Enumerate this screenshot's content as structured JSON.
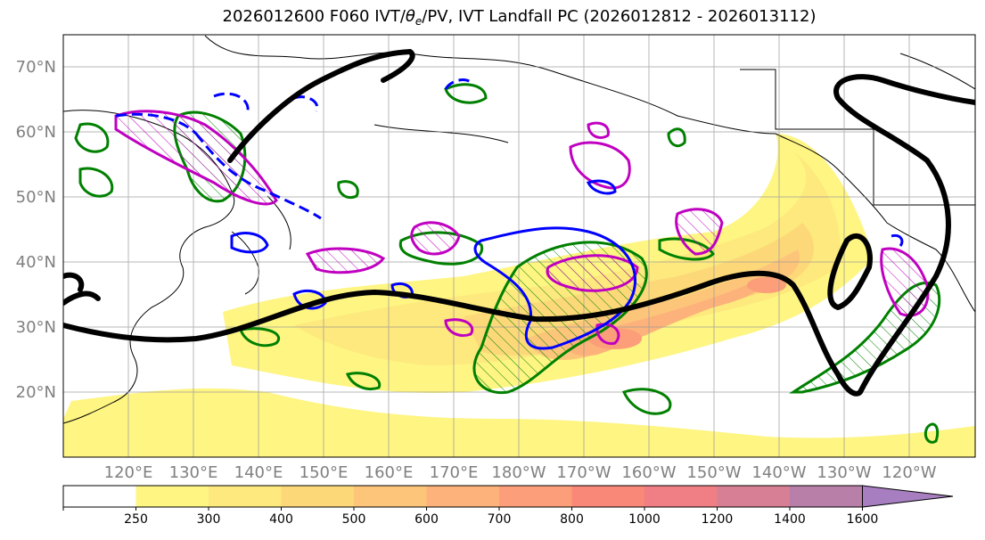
{
  "title": {
    "prefix": "2026012600 F060 IVT/",
    "theta": "θ",
    "theta_sub": "e",
    "suffix": "/PV, IVT Landfall PC (2026012812 - 2026013112)"
  },
  "lat_labels": [
    "70°N",
    "60°N",
    "50°N",
    "40°N",
    "30°N",
    "20°N"
  ],
  "lon_labels": [
    "120°E",
    "130°E",
    "140°E",
    "150°E",
    "160°E",
    "170°E",
    "180°W",
    "170°W",
    "160°W",
    "150°W",
    "140°W",
    "130°W",
    "120°W"
  ],
  "colorbar": {
    "ticks": [
      "250",
      "300",
      "400",
      "500",
      "600",
      "700",
      "800",
      "1000",
      "1200",
      "1400",
      "1600"
    ],
    "colors": [
      "#ffffff",
      "#fef583",
      "#fde97d",
      "#fdd879",
      "#fdc57a",
      "#fcb27a",
      "#fb9e79",
      "#f98878",
      "#ef7f84",
      "#d77f94",
      "#b87fa8",
      "#a77fc0"
    ]
  },
  "legend_colors": {
    "pv_contour": "#0000ff",
    "theta_contour": "#008000",
    "pc_contour": "#c000c0",
    "ivt_line": "#000000"
  }
}
